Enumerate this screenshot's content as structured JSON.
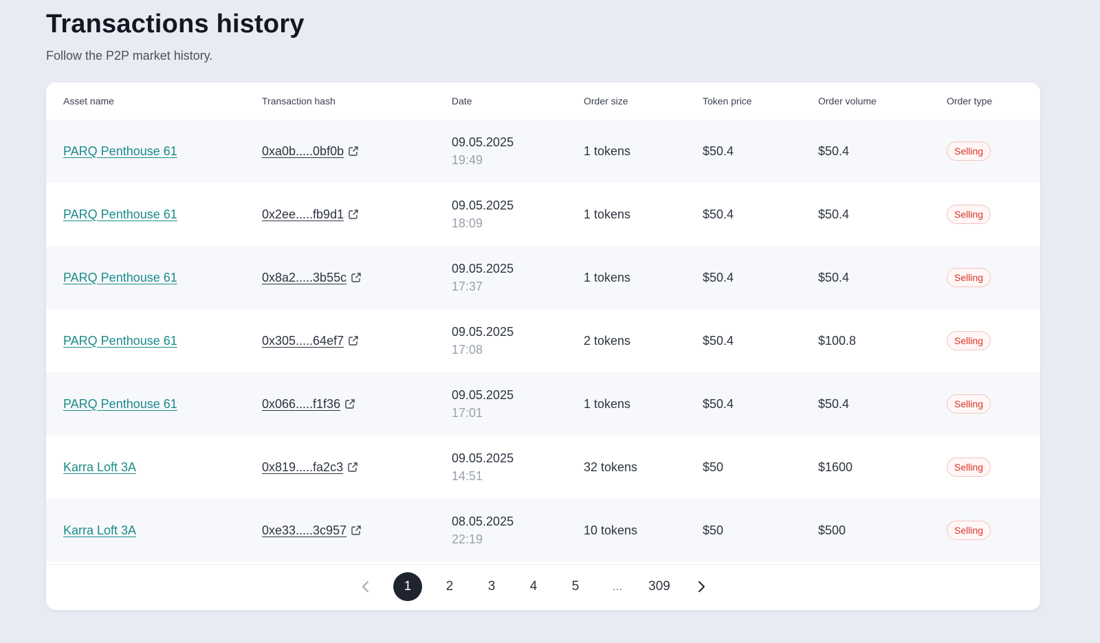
{
  "header": {
    "title": "Transactions history",
    "subtitle": "Follow the P2P market history."
  },
  "table": {
    "columns": [
      "Asset name",
      "Transaction hash",
      "Date",
      "Order size",
      "Token price",
      "Order volume",
      "Order type"
    ],
    "rows": [
      {
        "asset": "PARQ Penthouse 61",
        "hash": "0xa0b.....0bf0b",
        "date": "09.05.2025",
        "time": "19:49",
        "size": "1 tokens",
        "price": "$50.4",
        "volume": "$50.4",
        "type": "Selling"
      },
      {
        "asset": "PARQ Penthouse 61",
        "hash": "0x2ee.....fb9d1",
        "date": "09.05.2025",
        "time": "18:09",
        "size": "1 tokens",
        "price": "$50.4",
        "volume": "$50.4",
        "type": "Selling"
      },
      {
        "asset": "PARQ Penthouse 61",
        "hash": "0x8a2.....3b55c",
        "date": "09.05.2025",
        "time": "17:37",
        "size": "1 tokens",
        "price": "$50.4",
        "volume": "$50.4",
        "type": "Selling"
      },
      {
        "asset": "PARQ Penthouse 61",
        "hash": "0x305.....64ef7",
        "date": "09.05.2025",
        "time": "17:08",
        "size": "2 tokens",
        "price": "$50.4",
        "volume": "$100.8",
        "type": "Selling"
      },
      {
        "asset": "PARQ Penthouse 61",
        "hash": "0x066.....f1f36",
        "date": "09.05.2025",
        "time": "17:01",
        "size": "1 tokens",
        "price": "$50.4",
        "volume": "$50.4",
        "type": "Selling"
      },
      {
        "asset": "Karra Loft 3A",
        "hash": "0x819.....fa2c3",
        "date": "09.05.2025",
        "time": "14:51",
        "size": "32 tokens",
        "price": "$50",
        "volume": "$1600",
        "type": "Selling"
      },
      {
        "asset": "Karra Loft 3A",
        "hash": "0xe33.....3c957",
        "date": "08.05.2025",
        "time": "22:19",
        "size": "10 tokens",
        "price": "$50",
        "volume": "$500",
        "type": "Selling"
      }
    ]
  },
  "pagination": {
    "pages": [
      "1",
      "2",
      "3",
      "4",
      "5"
    ],
    "current": "1",
    "ellipsis": "...",
    "last": "309",
    "prev_icon": "chevron-left-icon",
    "next_icon": "chevron-right-icon"
  },
  "colors": {
    "accent_link": "#1a8a8a",
    "selling_badge": "#d9342b",
    "active_page": "#1f2430"
  }
}
